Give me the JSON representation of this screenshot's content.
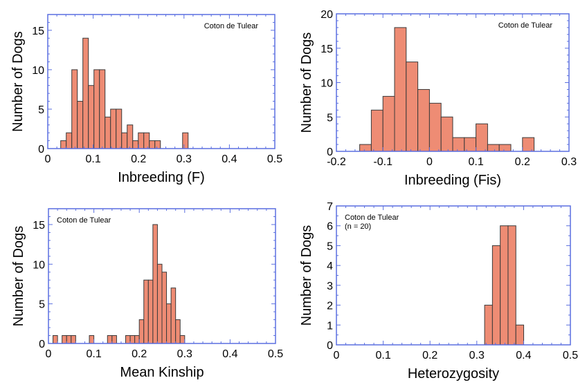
{
  "style": {
    "bar_fill": "#EE8C74",
    "bar_stroke": "#3a3a3a",
    "frame_color": "#5A6FE0"
  },
  "chart_data": [
    {
      "type": "bar",
      "subtype": "histogram",
      "title": "",
      "annotation": [
        "Coton de Tulear"
      ],
      "annotation_position": "top-right",
      "xlabel": "Inbreeding (F)",
      "ylabel": "Number of Dogs",
      "xlim": [
        0,
        0.5
      ],
      "ylim": [
        0,
        17
      ],
      "xticks": [
        0,
        0.1,
        0.2,
        0.3,
        0.4,
        0.5
      ],
      "xtick_labels": [
        "0",
        "0.1",
        "0.2",
        "0.3",
        "0.4",
        "0.5"
      ],
      "xminor": 0.02,
      "yticks": [
        0,
        5,
        10,
        15
      ],
      "ytick_labels": [
        "0",
        "5",
        "10",
        "15"
      ],
      "yminor": 1,
      "grid": false,
      "bin_start": 0.0285,
      "bin_width": 0.0122,
      "values": [
        1,
        2,
        10,
        6,
        14,
        8,
        10,
        10,
        4,
        5,
        5,
        2,
        3,
        1,
        2,
        2,
        1,
        1,
        0,
        0,
        0,
        0,
        2
      ]
    },
    {
      "type": "bar",
      "subtype": "histogram",
      "title": "",
      "annotation": [
        "Coton de Tulear"
      ],
      "annotation_position": "top-right",
      "xlabel": "Inbreeding (Fis)",
      "ylabel": "Number of Dogs",
      "xlim": [
        -0.2,
        0.3
      ],
      "ylim": [
        0,
        20
      ],
      "xticks": [
        -0.2,
        -0.1,
        0,
        0.1,
        0.2,
        0.3
      ],
      "xtick_labels": [
        "-0.2",
        "-0.1",
        "0",
        "0.1",
        "0.2",
        "0.3"
      ],
      "xminor": 0.02,
      "yticks": [
        0,
        5,
        10,
        15,
        20
      ],
      "ytick_labels": [
        "0",
        "5",
        "10",
        "15",
        "20"
      ],
      "yminor": 1,
      "grid": false,
      "bin_start": -0.15,
      "bin_width": 0.025,
      "values": [
        1,
        6,
        8,
        18,
        13,
        9,
        7,
        5,
        2,
        2,
        4,
        1,
        1,
        0,
        2
      ]
    },
    {
      "type": "bar",
      "subtype": "histogram",
      "title": "",
      "annotation": [
        "Coton de Tulear"
      ],
      "annotation_position": "top-left",
      "xlabel": "Mean Kinship",
      "ylabel": "Number of Dogs",
      "xlim": [
        0,
        0.5
      ],
      "ylim": [
        0,
        17
      ],
      "xticks": [
        0,
        0.1,
        0.2,
        0.3,
        0.4,
        0.5
      ],
      "xtick_labels": [
        "0",
        "0.1",
        "0.2",
        "0.3",
        "0.4",
        "0.5"
      ],
      "xminor": 0.02,
      "yticks": [
        0,
        5,
        10,
        15
      ],
      "ytick_labels": [
        "0",
        "5",
        "10",
        "15"
      ],
      "yminor": 1,
      "grid": false,
      "bin_start": 0.01,
      "bin_width": 0.01,
      "values": [
        1,
        0,
        1,
        1,
        1,
        0,
        0,
        0,
        1,
        0,
        0,
        0,
        1,
        1,
        0,
        0,
        1,
        1,
        1,
        3,
        8,
        8,
        15,
        10,
        9,
        5,
        7,
        3,
        1
      ]
    },
    {
      "type": "bar",
      "subtype": "histogram",
      "title": "",
      "annotation": [
        "Coton de Tulear",
        "(n = 20)"
      ],
      "annotation_position": "top-left",
      "xlabel": "Heterozygosity",
      "ylabel": "Number of Dogs",
      "xlim": [
        0,
        0.5
      ],
      "ylim": [
        0,
        7
      ],
      "xticks": [
        0,
        0.1,
        0.2,
        0.3,
        0.4,
        0.5
      ],
      "xtick_labels": [
        "0",
        "0.1",
        "0.2",
        "0.3",
        "0.4",
        "0.5"
      ],
      "xminor": 0.02,
      "yticks": [
        0,
        1,
        2,
        3,
        4,
        5,
        6,
        7
      ],
      "ytick_labels": [
        "0",
        "1",
        "2",
        "3",
        "4",
        "5",
        "6",
        "7"
      ],
      "yminor": 0.5,
      "grid": false,
      "bin_start": 0.3167,
      "bin_width": 0.0167,
      "values": [
        2,
        5,
        6,
        6,
        1
      ]
    }
  ]
}
